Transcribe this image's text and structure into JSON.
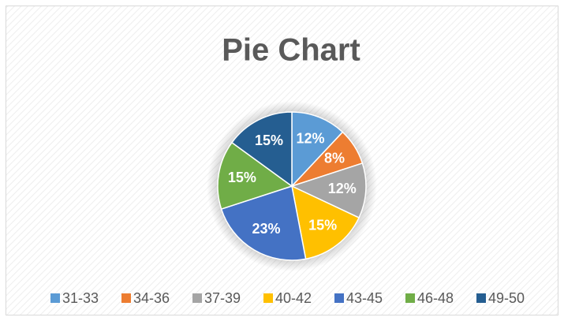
{
  "chart_data": {
    "type": "pie",
    "title": "Pie Chart",
    "categories": [
      "31-33",
      "34-36",
      "37-39",
      "40-42",
      "43-45",
      "46-48",
      "49-50"
    ],
    "values": [
      12,
      8,
      12,
      15,
      23,
      15,
      15
    ],
    "value_labels": [
      "12%",
      "8%",
      "12%",
      "15%",
      "23%",
      "15%",
      "15%"
    ],
    "colors": [
      "#5b9bd5",
      "#ed7d31",
      "#a5a5a5",
      "#ffc000",
      "#4472c4",
      "#70ad47",
      "#255e91"
    ],
    "legend": "bottom"
  }
}
